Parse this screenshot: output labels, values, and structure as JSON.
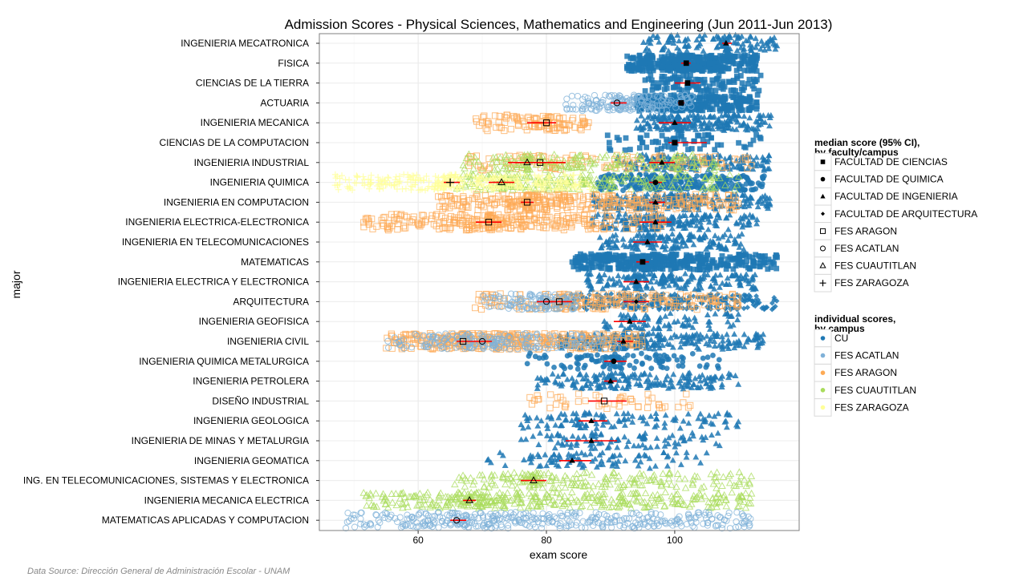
{
  "chart_data": {
    "type": "scatter",
    "title": "Admission Scores - Physical Sciences, Mathematics and Engineering (Jun 2011-Jun 2013)",
    "xlabel": "exam score",
    "ylabel": "major",
    "xlim": [
      44.6,
      119.4
    ],
    "xticks": [
      60,
      80,
      100
    ],
    "grid": true,
    "legend_position": "right",
    "categories": [
      "INGENIERIA MECATRONICA",
      "FISICA",
      "CIENCIAS DE LA TIERRA",
      "ACTUARIA",
      "INGENIERIA MECANICA",
      "CIENCIAS DE LA COMPUTACION",
      "INGENIERIA INDUSTRIAL",
      "INGENIERIA QUIMICA",
      "INGENIERIA EN COMPUTACION",
      "INGENIERIA ELECTRICA-ELECTRONICA",
      "INGENIERIA EN TELECOMUNICACIONES",
      "MATEMATICAS",
      "INGENIERIA ELECTRICA Y ELECTRONICA",
      "ARQUITECTURA",
      "INGENIERIA GEOFISICA",
      "INGENIERIA CIVIL",
      "INGENIERIA QUIMICA METALURGICA",
      "INGENIERIA PETROLERA",
      "DISEÑO INDUSTRIAL",
      "INGENIERIA GEOLOGICA",
      "INGENIERIA DE MINAS Y METALURGIA",
      "INGENIERIA GEOMATICA",
      "ING. EN TELECOMUNICACIONES, SISTEMAS Y ELECTRONICA",
      "INGENIERIA MECANICA ELECTRICA",
      "MATEMATICAS APLICADAS Y COMPUTACION"
    ],
    "faculty_legend": {
      "title_lines": [
        "median score (95% CI),",
        "by faculty/campus"
      ],
      "items": [
        {
          "label": "FACULTAD DE CIENCIAS",
          "shape": "square",
          "filled": true
        },
        {
          "label": "FACULTAD DE QUIMICA",
          "shape": "circle",
          "filled": true
        },
        {
          "label": "FACULTAD DE INGENIERIA",
          "shape": "triangle",
          "filled": true
        },
        {
          "label": "FACULTAD DE ARQUITECTURA",
          "shape": "diamond",
          "filled": true
        },
        {
          "label": "FES ARAGON",
          "shape": "square",
          "filled": false
        },
        {
          "label": "FES ACATLAN",
          "shape": "circle",
          "filled": false
        },
        {
          "label": "FES CUAUTITLAN",
          "shape": "triangle",
          "filled": false
        },
        {
          "label": "FES ZARAGOZA",
          "shape": "plus",
          "filled": false
        }
      ]
    },
    "campus_legend": {
      "title_lines": [
        "individual scores,",
        "by campus"
      ],
      "items": [
        {
          "label": "CU",
          "color": "#1f78b4"
        },
        {
          "label": "FES ACATLAN",
          "color": "#7fb1d8"
        },
        {
          "label": "FES ARAGON",
          "color": "#fdaa55"
        },
        {
          "label": "FES CUAUTITLAN",
          "color": "#a9dc5c"
        },
        {
          "label": "FES ZARAGOZA",
          "color": "#ffff99"
        }
      ]
    },
    "ci_color": "#ff0000",
    "groups": [
      {
        "row": 0,
        "campus": 0,
        "marker": 2,
        "median": 108,
        "ci": [
          107.4,
          108.9
        ],
        "range": [
          95,
          116
        ],
        "n": 120
      },
      {
        "row": 1,
        "campus": 0,
        "marker": 0,
        "median": 101.8,
        "ci": [
          101,
          102.5
        ],
        "range": [
          92.4,
          113
        ],
        "n": 380
      },
      {
        "row": 2,
        "campus": 0,
        "marker": 0,
        "median": 102,
        "ci": [
          100,
          104
        ],
        "range": [
          95,
          114
        ],
        "n": 110
      },
      {
        "row": 3,
        "campus": 0,
        "marker": 0,
        "median": 101,
        "ci": [
          100.5,
          101.5
        ],
        "range": [
          94,
          113
        ],
        "n": 300
      },
      {
        "row": 3,
        "campus": 1,
        "marker": 5,
        "median": 91,
        "ci": [
          90,
          92.5
        ],
        "range": [
          83,
          103
        ],
        "n": 180
      },
      {
        "row": 4,
        "campus": 0,
        "marker": 2,
        "median": 100,
        "ci": [
          97.5,
          102.5
        ],
        "range": [
          94,
          115
        ],
        "n": 200
      },
      {
        "row": 4,
        "campus": 2,
        "marker": 4,
        "median": 80,
        "ci": [
          77,
          81.5
        ],
        "range": [
          69,
          87
        ],
        "n": 110
      },
      {
        "row": 5,
        "campus": 0,
        "marker": 0,
        "median": 100,
        "ci": [
          99,
          105
        ],
        "range": [
          89,
          114
        ],
        "n": 70
      },
      {
        "row": 6,
        "campus": 0,
        "marker": 2,
        "median": 98,
        "ci": [
          96,
          100
        ],
        "range": [
          91,
          115
        ],
        "n": 180
      },
      {
        "row": 6,
        "campus": 2,
        "marker": 4,
        "median": 79,
        "ci": [
          75,
          83
        ],
        "range": [
          67,
          112
        ],
        "n": 130
      },
      {
        "row": 6,
        "campus": 3,
        "marker": 6,
        "median": 77,
        "ci": [
          74,
          80
        ],
        "range": [
          67,
          107
        ],
        "n": 170
      },
      {
        "row": 7,
        "campus": 0,
        "marker": 1,
        "median": 97,
        "ci": [
          96,
          98
        ],
        "range": [
          88,
          114
        ],
        "n": 260
      },
      {
        "row": 7,
        "campus": 3,
        "marker": 6,
        "median": 73,
        "ci": [
          71,
          75
        ],
        "range": [
          66,
          110
        ],
        "n": 220
      },
      {
        "row": 7,
        "campus": 4,
        "marker": 7,
        "median": 65,
        "ci": [
          64,
          66.5
        ],
        "range": [
          47,
          87
        ],
        "n": 350
      },
      {
        "row": 8,
        "campus": 0,
        "marker": 2,
        "median": 97,
        "ci": [
          96,
          98.5
        ],
        "range": [
          87,
          115
        ],
        "n": 250
      },
      {
        "row": 8,
        "campus": 2,
        "marker": 4,
        "median": 77,
        "ci": [
          76,
          78
        ],
        "range": [
          63,
          110
        ],
        "n": 330
      },
      {
        "row": 9,
        "campus": 0,
        "marker": 2,
        "median": 97,
        "ci": [
          94.5,
          99.5
        ],
        "range": [
          87,
          113
        ],
        "n": 200
      },
      {
        "row": 9,
        "campus": 2,
        "marker": 4,
        "median": 71,
        "ci": [
          69,
          73
        ],
        "range": [
          51.5,
          98.6
        ],
        "n": 300
      },
      {
        "row": 10,
        "campus": 0,
        "marker": 2,
        "median": 95.75,
        "ci": [
          93.5,
          98
        ],
        "range": [
          88,
          111
        ],
        "n": 150
      },
      {
        "row": 11,
        "campus": 0,
        "marker": 0,
        "median": 95,
        "ci": [
          94,
          96
        ],
        "range": [
          84,
          116
        ],
        "n": 380
      },
      {
        "row": 12,
        "campus": 0,
        "marker": 2,
        "median": 94,
        "ci": [
          92,
          96
        ],
        "range": [
          86,
          113
        ],
        "n": 180
      },
      {
        "row": 13,
        "campus": 0,
        "marker": 3,
        "median": 94,
        "ci": [
          92,
          96
        ],
        "range": [
          82,
          116
        ],
        "n": 300
      },
      {
        "row": 13,
        "campus": 2,
        "marker": 4,
        "median": 82,
        "ci": [
          80,
          84
        ],
        "range": [
          68.5,
          110
        ],
        "n": 220
      },
      {
        "row": 13,
        "campus": 1,
        "marker": 5,
        "median": 80,
        "ci": [
          78.5,
          81
        ],
        "range": [
          70,
          85
        ],
        "n": 120
      },
      {
        "row": 14,
        "campus": 0,
        "marker": 2,
        "median": 93,
        "ci": [
          90.5,
          95.5
        ],
        "range": [
          88.5,
          110
        ],
        "n": 80
      },
      {
        "row": 15,
        "campus": 0,
        "marker": 2,
        "median": 92,
        "ci": [
          91,
          93.5
        ],
        "range": [
          82,
          114
        ],
        "n": 260
      },
      {
        "row": 15,
        "campus": 2,
        "marker": 4,
        "median": 67,
        "ci": [
          66,
          68.5
        ],
        "range": [
          55,
          95
        ],
        "n": 400
      },
      {
        "row": 15,
        "campus": 1,
        "marker": 5,
        "median": 70,
        "ci": [
          68.5,
          71.5
        ],
        "range": [
          55,
          92
        ],
        "n": 200
      },
      {
        "row": 16,
        "campus": 0,
        "marker": 1,
        "median": 90.5,
        "ci": [
          89,
          92.5
        ],
        "range": [
          77,
          107
        ],
        "n": 110
      },
      {
        "row": 17,
        "campus": 0,
        "marker": 2,
        "median": 90,
        "ci": [
          89,
          91
        ],
        "range": [
          78.5,
          110
        ],
        "n": 180
      },
      {
        "row": 18,
        "campus": 2,
        "marker": 4,
        "median": 89,
        "ci": [
          86.5,
          92.5
        ],
        "range": [
          77,
          103
        ],
        "n": 50
      },
      {
        "row": 19,
        "campus": 0,
        "marker": 2,
        "median": 87,
        "ci": [
          85,
          89.5
        ],
        "range": [
          76,
          110
        ],
        "n": 110
      },
      {
        "row": 20,
        "campus": 0,
        "marker": 2,
        "median": 87,
        "ci": [
          83,
          91
        ],
        "range": [
          76,
          107
        ],
        "n": 90
      },
      {
        "row": 21,
        "campus": 0,
        "marker": 2,
        "median": 84,
        "ci": [
          82,
          87
        ],
        "range": [
          70.5,
          105
        ],
        "n": 90
      },
      {
        "row": 22,
        "campus": 3,
        "marker": 6,
        "median": 78,
        "ci": [
          76,
          80
        ],
        "range": [
          65.5,
          112
        ],
        "n": 200
      },
      {
        "row": 23,
        "campus": 3,
        "marker": 6,
        "median": 68,
        "ci": [
          67,
          69
        ],
        "range": [
          51.5,
          112
        ],
        "n": 380
      },
      {
        "row": 24,
        "campus": 1,
        "marker": 5,
        "median": 66,
        "ci": [
          65,
          67.5
        ],
        "range": [
          48.6,
          112
        ],
        "n": 400
      }
    ]
  },
  "footnote": "Data Source: Dirección General de Administración Escolar - UNAM"
}
